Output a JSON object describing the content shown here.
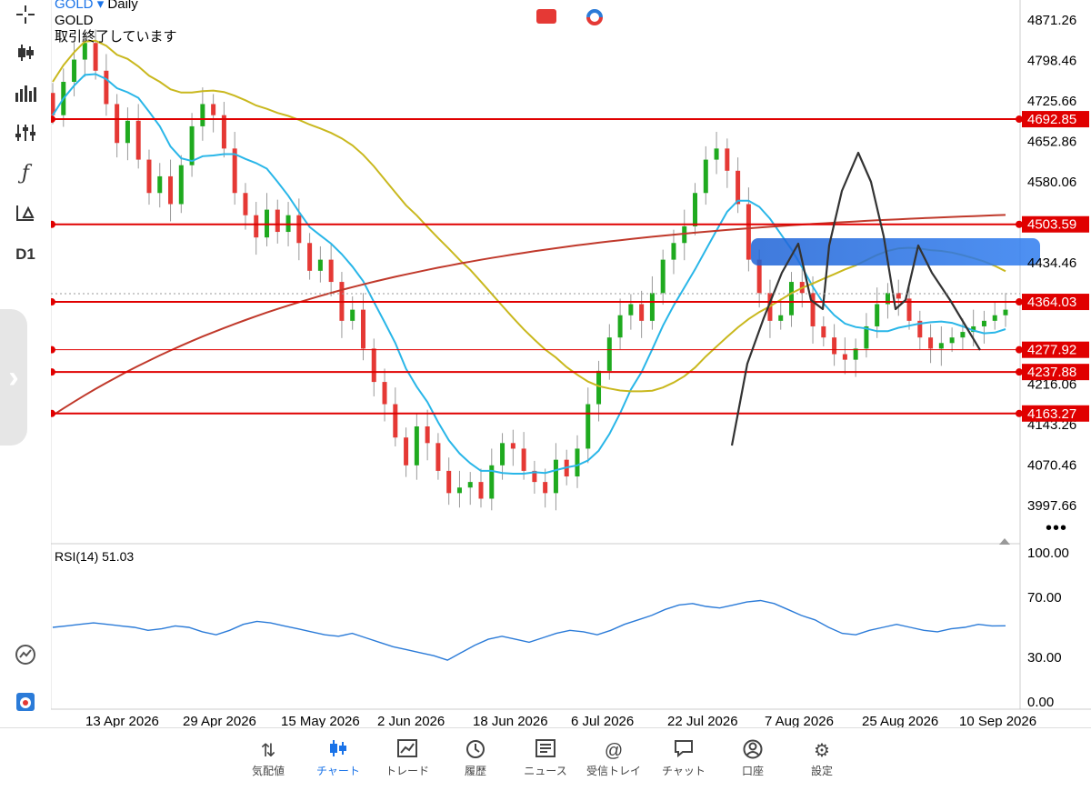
{
  "header": {
    "symbol": "GOLD",
    "timeframe": "Daily",
    "name": "GOLD",
    "status": "取引終了しています",
    "timeframe_badge": "D1"
  },
  "chart_data": {
    "type": "candlestick",
    "price_axis": [
      "4871.26",
      "4798.46",
      "4725.66",
      "4652.86",
      "4580.06",
      "4434.46",
      "4216.06",
      "4143.26",
      "4070.46",
      "3997.66"
    ],
    "x_ticks": [
      "13 Apr 2026",
      "29 Apr 2026",
      "15 May 2026",
      "2 Jun 2026",
      "18 Jun 2026",
      "6 Jul 2026",
      "22 Jul 2026",
      "7 Aug 2026",
      "25 Aug 2026",
      "10 Sep 2026"
    ],
    "levels": [
      {
        "label": "4692.85",
        "value": 4692.85
      },
      {
        "label": "4503.59",
        "value": 4503.59
      },
      {
        "label": "4364.03",
        "value": 4364.03
      },
      {
        "label": "4277.92",
        "value": 4277.92
      },
      {
        "label": "4237.88",
        "value": 4237.88
      },
      {
        "label": "4163.27",
        "value": 4163.27
      }
    ],
    "candles_close": [
      4700,
      4760,
      4800,
      4830,
      4780,
      4720,
      4650,
      4690,
      4620,
      4560,
      4590,
      4540,
      4610,
      4680,
      4720,
      4700,
      4640,
      4560,
      4520,
      4480,
      4530,
      4490,
      4520,
      4470,
      4420,
      4440,
      4400,
      4330,
      4350,
      4280,
      4220,
      4180,
      4120,
      4070,
      4140,
      4110,
      4060,
      4020,
      4030,
      4040,
      4010,
      4070,
      4110,
      4100,
      4060,
      4040,
      4020,
      4080,
      4050,
      4100,
      4180,
      4240,
      4300,
      4340,
      4360,
      4330,
      4380,
      4440,
      4470,
      4500,
      4560,
      4620,
      4640,
      4600,
      4540,
      4440,
      4380,
      4330,
      4340,
      4400,
      4380,
      4320,
      4300,
      4270,
      4260,
      4280,
      4320,
      4360,
      4380,
      4370,
      4330,
      4300,
      4280,
      4290,
      4300,
      4310,
      4320,
      4330,
      4340,
      4350
    ],
    "rsi": {
      "label": "RSI(14) 51.03",
      "axis": [
        "100.00",
        "70.00",
        "30.00",
        "0.00"
      ],
      "values": [
        50,
        51,
        52,
        53,
        52,
        51,
        50,
        48,
        49,
        51,
        50,
        47,
        45,
        48,
        52,
        54,
        53,
        51,
        49,
        47,
        45,
        44,
        46,
        43,
        40,
        37,
        35,
        33,
        31,
        28,
        33,
        38,
        42,
        44,
        42,
        40,
        43,
        46,
        48,
        47,
        45,
        48,
        52,
        55,
        58,
        62,
        65,
        66,
        64,
        63,
        65,
        67,
        68,
        66,
        62,
        58,
        55,
        50,
        46,
        45,
        48,
        50,
        52,
        50,
        48,
        47,
        49,
        50,
        52,
        51,
        51.03
      ]
    }
  },
  "toolbar": {
    "icons": [
      "crosshair-icon",
      "candles-icon",
      "bars-icon",
      "indicators-icon",
      "function-icon",
      "objects-icon"
    ]
  },
  "bottom_nav": [
    {
      "label": "気配値",
      "icon": "quotes-icon"
    },
    {
      "label": "チャート",
      "icon": "chart-icon"
    },
    {
      "label": "トレード",
      "icon": "trade-icon"
    },
    {
      "label": "履歴",
      "icon": "history-icon"
    },
    {
      "label": "ニュース",
      "icon": "news-icon"
    },
    {
      "label": "受信トレイ",
      "icon": "mail-icon"
    },
    {
      "label": "チャット",
      "icon": "chat-icon"
    },
    {
      "label": "口座",
      "icon": "account-icon"
    },
    {
      "label": "設定",
      "icon": "settings-icon"
    }
  ],
  "colors": {
    "bull": "#1faa1f",
    "bear": "#e53935",
    "level": "#e00000",
    "ma_fast": "#29b6e8",
    "ma_mid": "#c9b81e",
    "ma_slow": "#c0392b",
    "rsi": "#2b7bd8",
    "accent": "#1a73e8"
  }
}
